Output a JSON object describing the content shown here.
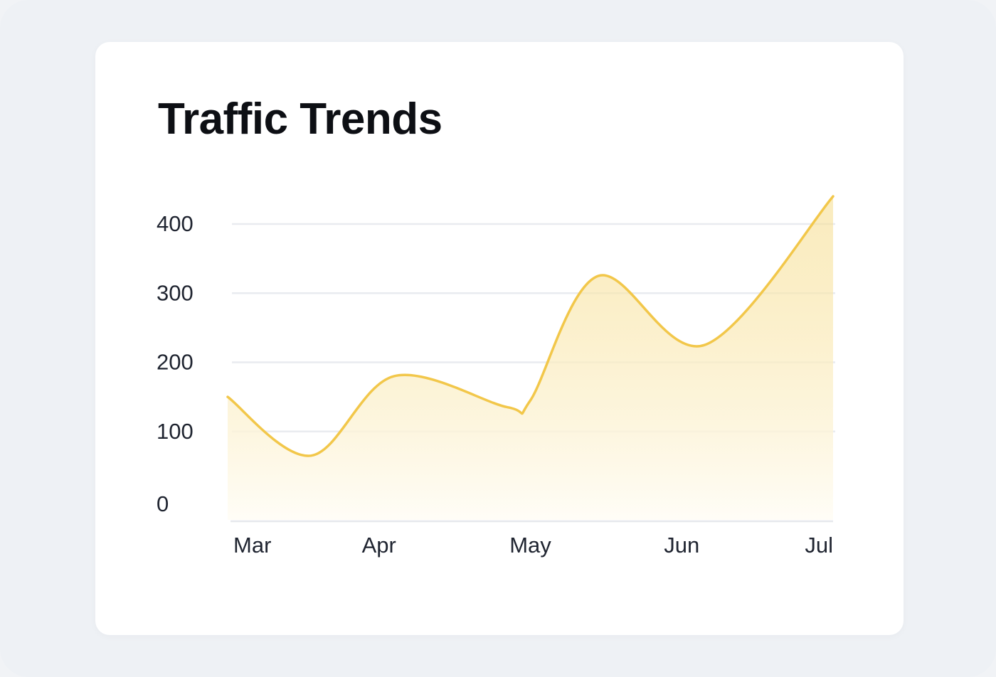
{
  "card": {
    "title": "Traffic Trends"
  },
  "chart_data": {
    "type": "area",
    "title": "Traffic Trends",
    "xlabel": "",
    "ylabel": "",
    "x_tick_labels": [
      "Mar",
      "Apr",
      "May",
      "Jun",
      "Jul"
    ],
    "y_ticks": [
      0,
      100,
      200,
      300,
      400
    ],
    "ylim": [
      0,
      400
    ],
    "grid": "horizontal",
    "legend": "none",
    "curve": "smooth",
    "series": [
      {
        "x": [
          0,
          0.55,
          1.1,
          1.85,
          2.0,
          2.45,
          3.15,
          4.0
        ],
        "values": [
          150,
          65,
          180,
          135,
          145,
          325,
          225,
          440
        ]
      }
    ],
    "colors": {
      "line": "#f2c74a",
      "fill_top": "#f6dc8a",
      "fill_bottom": "#fffdf6",
      "grid": "#e9ebef",
      "axis": "#e6e8ec",
      "label": "#1f2430",
      "title": "#0d0f14"
    }
  }
}
